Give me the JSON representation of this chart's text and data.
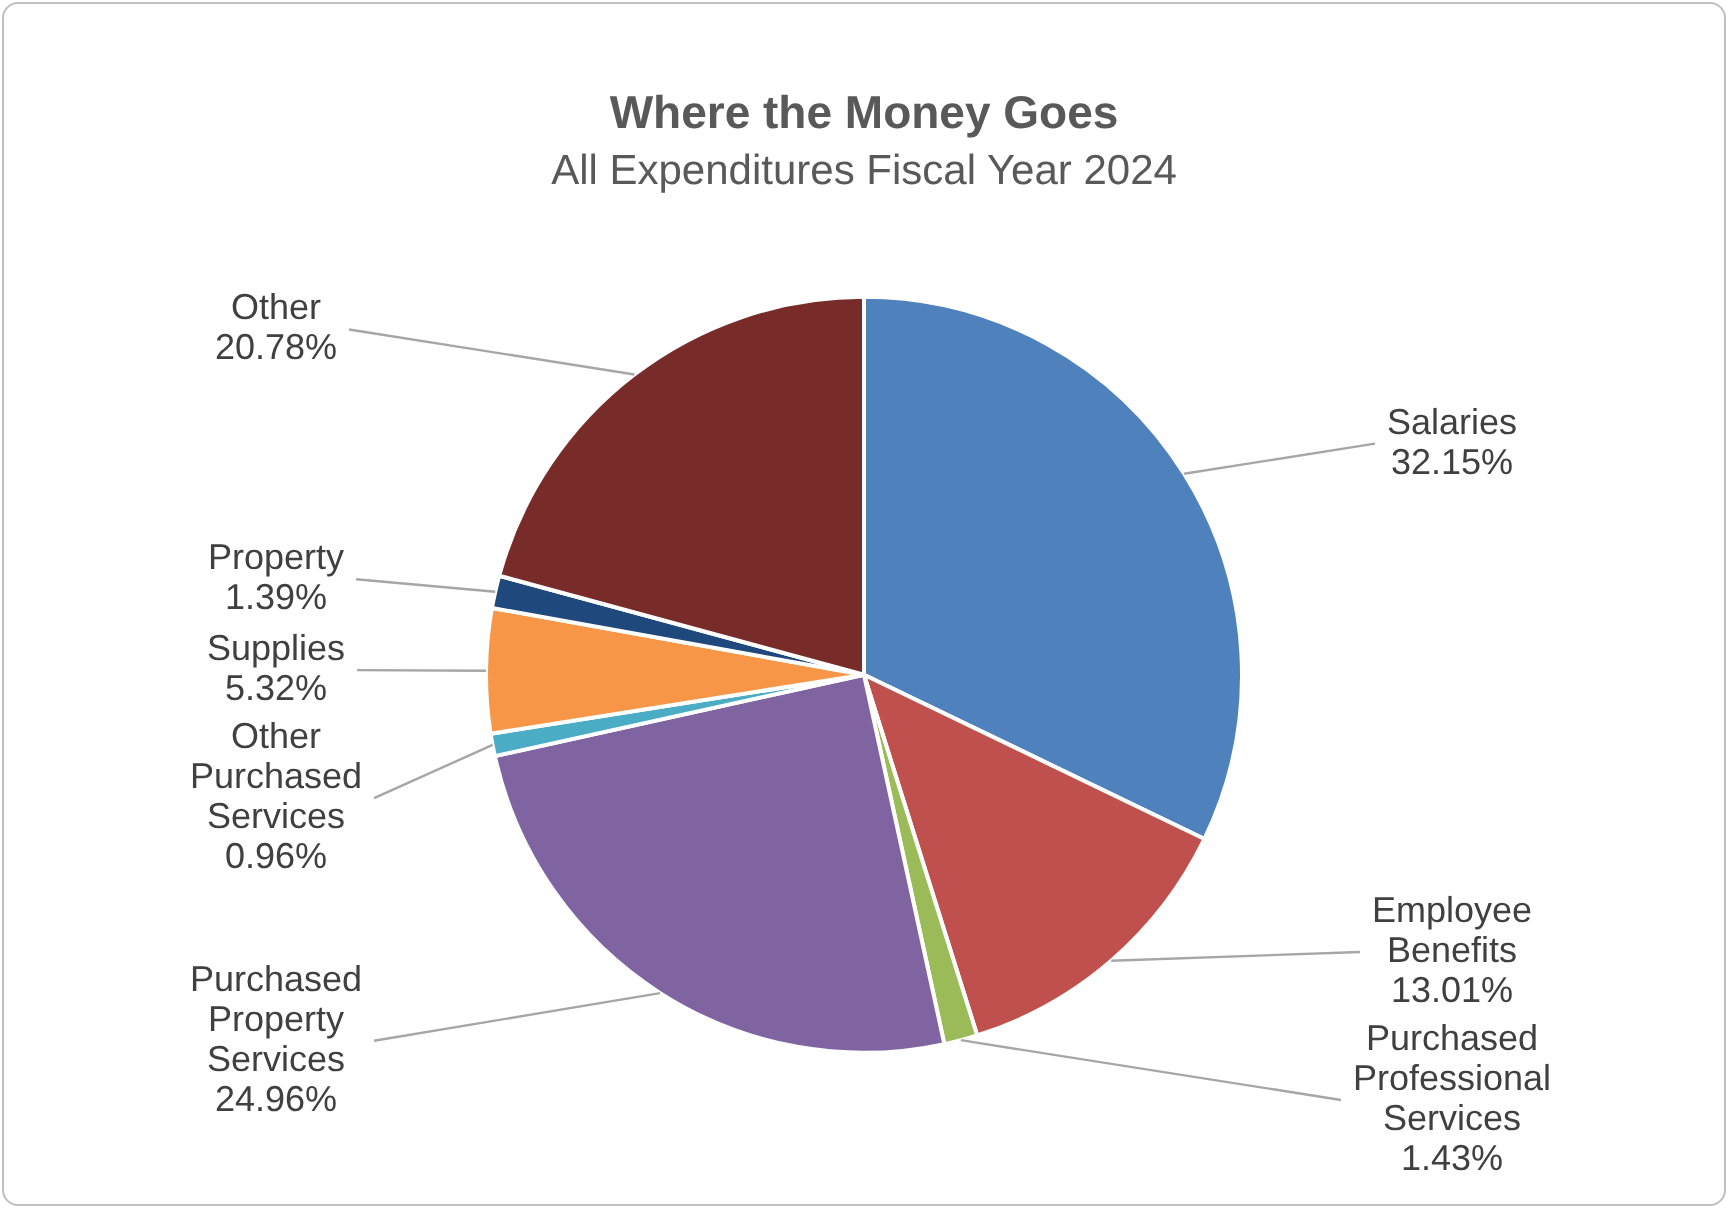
{
  "chart_data": {
    "type": "pie",
    "title": "Where the Money Goes",
    "subtitle": "All Expenditures Fiscal Year 2024",
    "categories": [
      "Salaries",
      "Employee Benefits",
      "Purchased Professional Services",
      "Purchased Property Services",
      "Other Purchased Services",
      "Supplies",
      "Property",
      "Other"
    ],
    "values": [
      32.15,
      13.01,
      1.43,
      24.96,
      0.96,
      5.32,
      1.39,
      20.78
    ],
    "value_labels": [
      "32.15%",
      "13.01%",
      "1.43%",
      "24.96%",
      "0.96%",
      "5.32%",
      "1.39%",
      "20.78%"
    ],
    "colors": [
      "#4f81bd",
      "#c0504d",
      "#9bbb59",
      "#8064a2",
      "#4bacc6",
      "#f79646",
      "#1f497d",
      "#772c2a"
    ],
    "legend": false
  }
}
